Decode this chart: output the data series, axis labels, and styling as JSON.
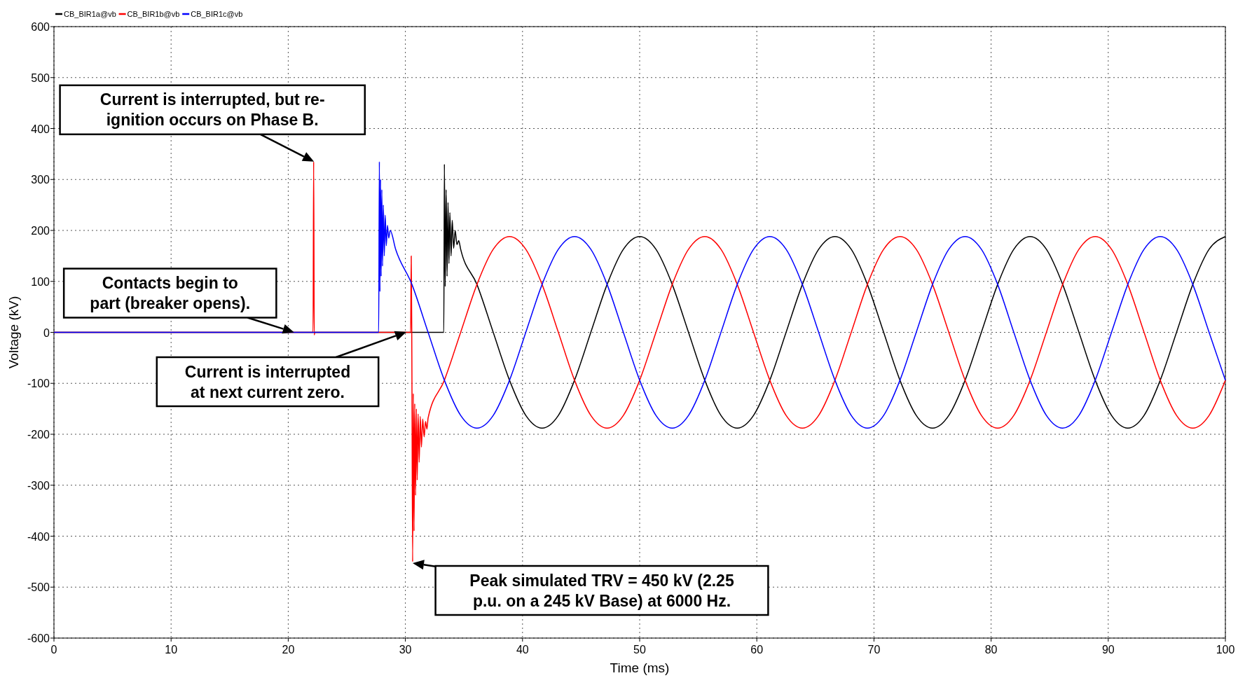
{
  "chart_data": {
    "type": "line",
    "xlabel": "Time (ms)",
    "ylabel": "Voltage (kV)",
    "xlim": [
      0,
      100
    ],
    "xticks": [
      0,
      10,
      20,
      30,
      40,
      50,
      60,
      70,
      80,
      90,
      100
    ],
    "ylim": [
      -600,
      600
    ],
    "yticks": [
      -600,
      -500,
      -400,
      -300,
      -200,
      -100,
      0,
      100,
      200,
      300,
      400,
      500,
      600
    ],
    "grid": true,
    "legend": "top left",
    "line_style": "solid",
    "marker": "none",
    "series": [
      {
        "name": "CB_BIR1a@vb",
        "color": "#000000",
        "x": [
          0,
          33.28,
          33.33,
          33.4,
          33.48,
          33.56,
          33.64,
          33.72,
          33.8,
          33.9,
          34.0,
          34.12,
          34.25,
          34.4,
          34.55,
          34.72,
          36.11,
          37.5,
          38.89,
          40.28,
          41.67,
          43.06,
          44.44,
          45.83,
          47.22,
          48.61,
          50.0,
          51.39,
          52.78,
          54.17,
          55.56,
          56.94,
          58.33,
          59.72,
          61.11,
          62.5,
          63.89,
          65.28,
          66.67,
          68.06,
          69.44,
          70.83,
          72.22,
          73.61,
          75.0,
          76.39,
          77.78,
          79.17,
          80.56,
          81.94,
          83.33,
          84.72,
          86.11,
          87.5,
          88.89,
          90.28,
          91.67,
          93.06,
          94.44,
          95.83,
          97.22,
          98.61,
          100.0
        ],
        "values": [
          0,
          0,
          330,
          90,
          280,
          110,
          255,
          135,
          235,
          150,
          220,
          165,
          200,
          172,
          180,
          163,
          94,
          0,
          -94,
          -163,
          -188,
          -163,
          -94,
          0,
          94,
          163,
          188,
          163,
          94,
          0,
          -94,
          -163,
          -188,
          -163,
          -94,
          0,
          94,
          163,
          188,
          163,
          94,
          0,
          -94,
          -163,
          -188,
          -163,
          -94,
          0,
          94,
          163,
          188,
          163,
          94,
          0,
          -94,
          -163,
          -188,
          -163,
          -94,
          0,
          94,
          163,
          188
        ]
      },
      {
        "name": "CB_BIR1b@vb",
        "color": "#ff0000",
        "x": [
          0,
          22.12,
          22.17,
          22.22,
          22.27,
          30.45,
          30.5,
          30.55,
          30.62,
          30.68,
          30.74,
          30.8,
          30.87,
          30.94,
          31.01,
          31.09,
          31.18,
          31.27,
          31.37,
          31.48,
          31.6,
          31.72,
          31.84,
          31.94,
          33.33,
          34.72,
          36.11,
          37.5,
          38.89,
          40.28,
          41.67,
          43.06,
          44.44,
          45.83,
          47.22,
          48.61,
          50.0,
          51.39,
          52.78,
          54.17,
          55.56,
          56.94,
          58.33,
          59.72,
          61.11,
          62.5,
          63.89,
          65.28,
          66.67,
          68.06,
          69.44,
          70.83,
          72.22,
          73.61,
          75.0,
          76.39,
          77.78,
          79.17,
          80.56,
          81.94,
          83.33,
          84.72,
          86.11,
          87.5,
          88.89,
          90.28,
          91.67,
          93.06,
          94.44,
          95.83,
          97.22,
          98.61,
          100.0
        ],
        "values": [
          0,
          0,
          335,
          -5,
          0,
          0,
          150,
          -30,
          -450,
          -120,
          -390,
          -140,
          -320,
          -150,
          -290,
          -160,
          -255,
          -165,
          -225,
          -170,
          -205,
          -175,
          -190,
          -168,
          -94,
          0,
          94,
          163,
          188,
          163,
          94,
          0,
          -94,
          -163,
          -188,
          -163,
          -94,
          0,
          94,
          163,
          188,
          163,
          94,
          0,
          -94,
          -163,
          -188,
          -163,
          -94,
          0,
          94,
          163,
          188,
          163,
          94,
          0,
          -94,
          -163,
          -188,
          -163,
          -94,
          0,
          94,
          163,
          188,
          163,
          94,
          0,
          -94,
          -163,
          -188,
          -163,
          -94
        ]
      },
      {
        "name": "CB_BIR1c@vb",
        "color": "#0000ff",
        "x": [
          0,
          27.72,
          27.78,
          27.83,
          27.88,
          27.93,
          27.99,
          28.05,
          28.12,
          28.2,
          28.28,
          28.37,
          28.47,
          28.58,
          28.7,
          29.17,
          30.56,
          31.94,
          33.33,
          34.72,
          36.11,
          37.5,
          38.89,
          40.28,
          41.67,
          43.06,
          44.44,
          45.83,
          47.22,
          48.61,
          50.0,
          51.39,
          52.78,
          54.17,
          55.56,
          56.94,
          58.33,
          59.72,
          61.11,
          62.5,
          63.89,
          65.28,
          66.67,
          68.06,
          69.44,
          70.83,
          72.22,
          73.61,
          75.0,
          76.39,
          77.78,
          79.17,
          80.56,
          81.94,
          83.33,
          84.72,
          86.11,
          87.5,
          88.89,
          90.28,
          91.67,
          93.06,
          94.44,
          95.83,
          97.22,
          98.61,
          100.0
        ],
        "values": [
          0,
          0,
          335,
          80,
          300,
          110,
          280,
          130,
          250,
          150,
          230,
          170,
          210,
          185,
          200,
          163,
          94,
          0,
          -94,
          -163,
          -188,
          -163,
          -94,
          0,
          94,
          163,
          188,
          163,
          94,
          0,
          -94,
          -163,
          -188,
          -163,
          -94,
          0,
          94,
          163,
          188,
          163,
          94,
          0,
          -94,
          -163,
          -188,
          -163,
          -94,
          0,
          94,
          163,
          188,
          163,
          94,
          0,
          -94,
          -163,
          -188,
          -163,
          -94,
          0,
          94,
          163,
          188,
          163,
          94,
          0,
          -94
        ]
      }
    ],
    "annotations": [
      {
        "text": "Current is interrupted, but re-\nignition occurs on Phase B.",
        "x": 22.2,
        "y": 335
      },
      {
        "text": "Contacts begin to\npart (breaker opens).",
        "x": 20.5,
        "y": 0
      },
      "Current is interrupted\nat next current zero.",
      "Peak simulated TRV = 450 kV (2.25\np.u. on a 245 kV Base) at 6000 Hz."
    ]
  }
}
